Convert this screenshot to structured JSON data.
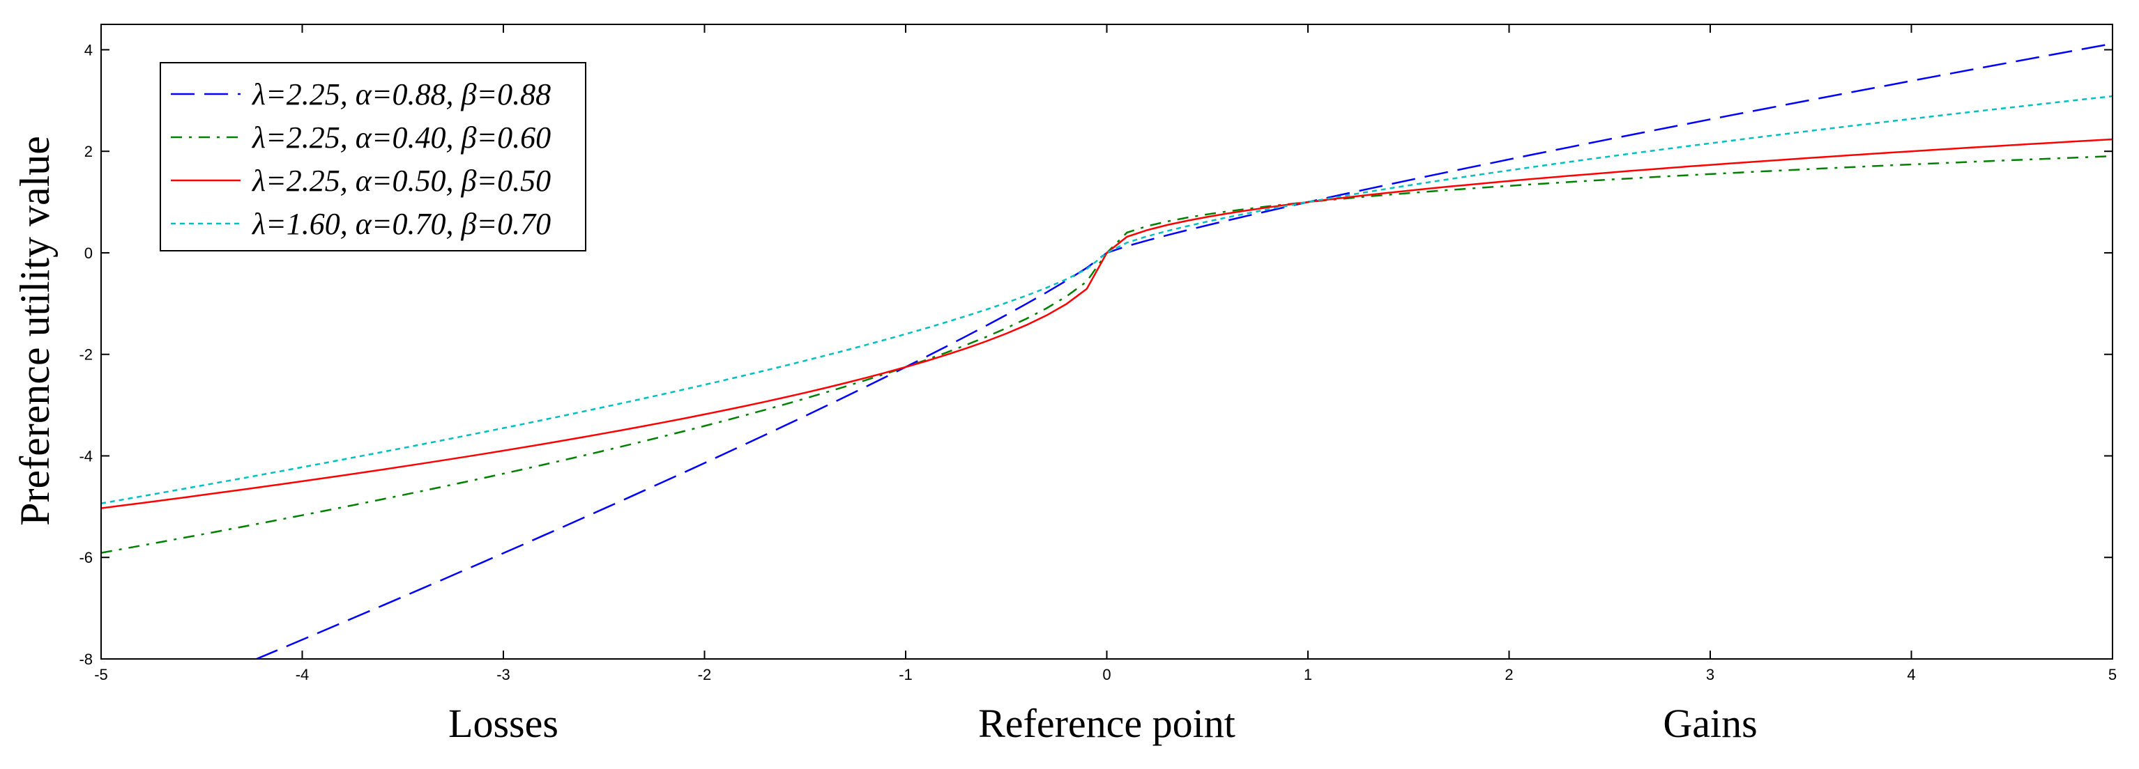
{
  "chart_data": {
    "type": "line",
    "title": "",
    "xlabel": "",
    "ylabel": "Preference utility value",
    "xlim": [
      -5,
      5
    ],
    "ylim": [
      -8,
      4.5
    ],
    "x_ticks": [
      -5,
      -4,
      -3,
      -2,
      -1,
      0,
      1,
      2,
      3,
      4,
      5
    ],
    "y_ticks": [
      -8,
      -6,
      -4,
      -2,
      0,
      2,
      4
    ],
    "region_labels": [
      {
        "text": "Losses",
        "x": -3
      },
      {
        "text": "Reference point",
        "x": 0
      },
      {
        "text": "Gains",
        "x": 3
      }
    ],
    "legend_position": "top-left",
    "grid": false,
    "series": [
      {
        "name": "λ=2.25, α=0.88, β=0.88",
        "lambda": 2.25,
        "alpha": 0.88,
        "beta": 0.88,
        "color": "#0000ff",
        "dash": "long-dash"
      },
      {
        "name": "λ=2.25, α=0.40, β=0.60",
        "lambda": 2.25,
        "alpha": 0.4,
        "beta": 0.6,
        "color": "#008000",
        "dash": "dash-dot"
      },
      {
        "name": "λ=2.25, α=0.50, β=0.50",
        "lambda": 2.25,
        "alpha": 0.5,
        "beta": 0.5,
        "color": "#ff0000",
        "dash": "solid"
      },
      {
        "name": "λ=1.60, α=0.70, β=0.70",
        "lambda": 1.6,
        "alpha": 0.7,
        "beta": 0.7,
        "color": "#00bfbf",
        "dash": "dotted"
      }
    ]
  }
}
